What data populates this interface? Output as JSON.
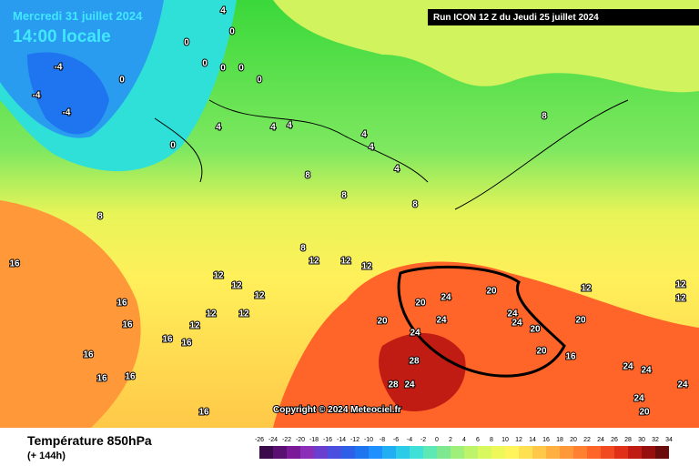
{
  "header": {
    "date": "Mercredi 31 juillet 2024",
    "time": "14:00 locale",
    "run": "Run ICON 12 Z du Jeudi 25 juillet 2024"
  },
  "copyright": "Copyright © 2024 Meteociel.fr",
  "footer": {
    "title": "Température 850hPa",
    "subtitle": "(+ 144h)"
  },
  "contour_labels": [
    -4,
    4,
    0,
    0,
    0,
    0,
    0,
    0,
    -4,
    0,
    -4,
    0,
    4,
    4,
    4,
    4,
    8,
    8,
    8,
    4,
    4,
    8,
    8,
    12,
    12,
    12,
    12,
    12,
    12,
    12,
    12,
    12,
    16,
    16,
    16,
    16,
    16,
    16,
    16,
    16,
    16,
    20,
    24,
    20,
    24,
    24,
    24,
    20,
    20,
    20,
    20,
    24,
    28,
    28,
    24,
    24,
    24,
    24,
    24,
    20,
    16,
    12,
    12,
    12,
    8
  ],
  "legend": {
    "ticks": [
      -26,
      -24,
      -22,
      -20,
      -18,
      -16,
      -14,
      -12,
      -10,
      -8,
      -6,
      -4,
      -2,
      0,
      2,
      4,
      6,
      8,
      10,
      12,
      14,
      16,
      18,
      20,
      22,
      24,
      26,
      28,
      30,
      32,
      34
    ],
    "colors": [
      "#3a0a4a",
      "#5a1070",
      "#7a1a99",
      "#8c2fb8",
      "#6a3fd0",
      "#4a4fe0",
      "#2e5fe8",
      "#1f74f0",
      "#1e90ff",
      "#21aef2",
      "#2ccbe8",
      "#3fe0d8",
      "#5ee8b4",
      "#7ee890",
      "#9ef07a",
      "#bdf46a",
      "#d8f860",
      "#eef858",
      "#fff45a",
      "#ffe050",
      "#ffc848",
      "#ffb040",
      "#ff9838",
      "#ff8030",
      "#ff6428",
      "#f24a20",
      "#e03018",
      "#c01c14",
      "#961010",
      "#6a0c0c"
    ]
  }
}
